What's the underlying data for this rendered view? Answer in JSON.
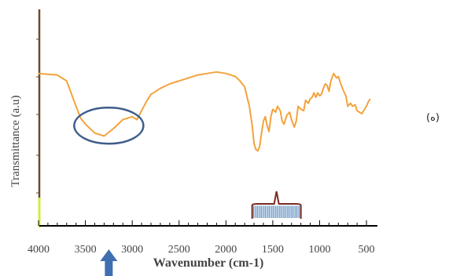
{
  "chart_data": {
    "type": "line",
    "xlabel": "Wavenumber (cm-1)",
    "ylabel": "Transmittance (a.u)",
    "x_ticks": [
      4000,
      3500,
      3000,
      2500,
      2000,
      1500,
      1000,
      500
    ],
    "x_tick_labels": [
      "4000",
      "3500",
      "3000",
      "2500",
      "2000",
      "1500",
      "1000",
      "500"
    ],
    "xlim": [
      4000,
      450
    ],
    "ylim": [
      0,
      100
    ],
    "grid": false,
    "series": [
      {
        "color": "#f4a23c",
        "x": [
          4000,
          3800,
          3700,
          3600,
          3550,
          3500,
          3400,
          3300,
          3200,
          3100,
          3000,
          2950,
          2900,
          2850,
          2800,
          2700,
          2600,
          2500,
          2400,
          2300,
          2200,
          2100,
          2000,
          1950,
          1900,
          1850,
          1800,
          1750,
          1720,
          1700,
          1680,
          1660,
          1640,
          1620,
          1600,
          1580,
          1560,
          1540,
          1520,
          1500,
          1470,
          1450,
          1420,
          1400,
          1380,
          1350,
          1320,
          1300,
          1270,
          1250,
          1230,
          1200,
          1170,
          1150,
          1120,
          1100,
          1080,
          1060,
          1040,
          1020,
          1000,
          980,
          960,
          940,
          920,
          900,
          880,
          850,
          820,
          800,
          780,
          750,
          720,
          700,
          670,
          650,
          620,
          600,
          550,
          500,
          480,
          460
        ],
        "y": [
          77,
          76,
          72,
          55,
          47,
          43,
          37,
          35,
          40,
          46,
          48,
          46,
          52,
          58,
          63,
          67,
          70,
          72,
          74,
          76,
          77,
          78,
          77,
          76,
          75,
          72,
          68,
          55,
          42,
          30,
          26,
          25,
          28,
          37,
          45,
          48,
          42,
          38,
          48,
          53,
          51,
          55,
          52,
          45,
          43,
          49,
          51,
          46,
          41,
          45,
          55,
          53,
          52,
          59,
          57,
          60,
          61,
          64,
          61,
          64,
          62,
          63,
          67,
          70,
          69,
          65,
          72,
          77,
          74,
          75,
          71,
          66,
          62,
          55,
          57,
          55,
          56,
          52,
          50,
          55,
          58,
          60
        ]
      }
    ],
    "annotations": [
      {
        "type": "ellipse",
        "center_x": 3250,
        "center_y": 42,
        "color": "#3e5d8a"
      },
      {
        "type": "bracket",
        "x_from": 1720,
        "x_to": 1200,
        "color": "#7a2a22"
      },
      {
        "type": "arrow",
        "x": 3250,
        "direction": "up",
        "color": "#3e6fb0"
      }
    ]
  },
  "panel_label": "(ه)",
  "colors": {
    "axis": "#000000",
    "axis_left": "#6b4a2a",
    "axis_left_bottom": "#ccee44",
    "curve": "#f4a23c",
    "ellipse": "#3e5d8a",
    "bracket": "#7a2a22",
    "bracket_fill": "#8fb6d8",
    "arrow": "#3e6fb0"
  }
}
